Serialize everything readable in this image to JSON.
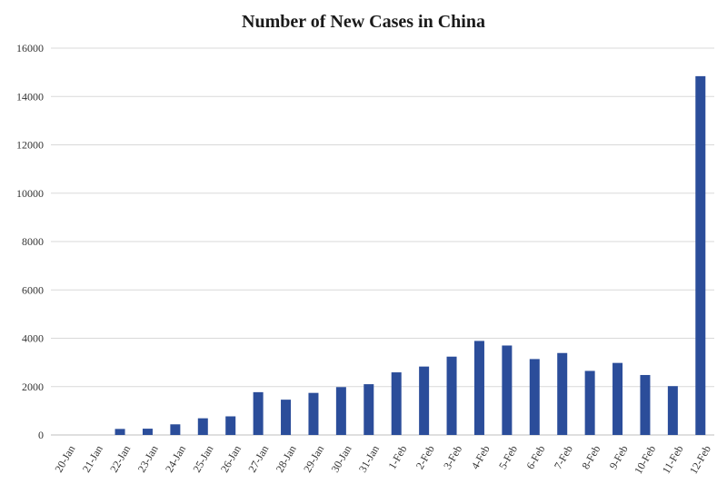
{
  "chart_data": {
    "type": "bar",
    "title": "Number of New Cases in China",
    "xlabel": "",
    "ylabel": "",
    "ylim": [
      0,
      16000
    ],
    "yticks": [
      0,
      2000,
      4000,
      6000,
      8000,
      10000,
      12000,
      14000,
      16000
    ],
    "grid": true,
    "legend": "none",
    "bar_color": "#2b4d9a",
    "categories": [
      "20-Jan",
      "21-Jan",
      "22-Jan",
      "23-Jan",
      "24-Jan",
      "25-Jan",
      "26-Jan",
      "27-Jan",
      "28-Jan",
      "29-Jan",
      "30-Jan",
      "31-Jan",
      "1-Feb",
      "2-Feb",
      "3-Feb",
      "4-Feb",
      "5-Feb",
      "6-Feb",
      "7-Feb",
      "8-Feb",
      "9-Feb",
      "10-Feb",
      "11-Feb",
      "12-Feb"
    ],
    "values": [
      0,
      0,
      250,
      260,
      440,
      690,
      770,
      1770,
      1460,
      1740,
      1980,
      2100,
      2590,
      2830,
      3240,
      3890,
      3700,
      3140,
      3390,
      2650,
      2980,
      2480,
      2020,
      14840
    ]
  }
}
